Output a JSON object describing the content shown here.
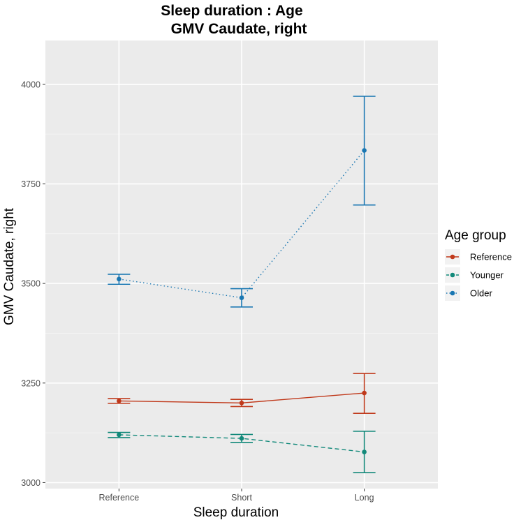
{
  "chart_data": {
    "type": "line",
    "title": "Sleep duration : Age",
    "subtitle": "GMV Caudate, right",
    "xlabel": "Sleep duration",
    "ylabel": "GMV Caudate, right",
    "categories": [
      "Reference",
      "Short",
      "Long"
    ],
    "ylim": [
      2985,
      4110
    ],
    "yticks": [
      3000,
      3250,
      3500,
      3750,
      4000
    ],
    "grid": true,
    "legend": {
      "title": "Age group",
      "position": "right"
    },
    "series": [
      {
        "name": "Reference",
        "color": "#c0391b",
        "linetype": "solid",
        "values": [
          3205,
          3200,
          3225
        ],
        "lower": [
          3199,
          3191,
          3174
        ],
        "upper": [
          3211,
          3209,
          3274
        ]
      },
      {
        "name": "Younger",
        "color": "#12897a",
        "linetype": "dashed",
        "values": [
          3120,
          3111,
          3077
        ],
        "lower": [
          3113,
          3101,
          3025
        ],
        "upper": [
          3126,
          3121,
          3129
        ]
      },
      {
        "name": "Older",
        "color": "#1a77b2",
        "linetype": "dotted",
        "values": [
          3511,
          3464,
          3834
        ],
        "lower": [
          3498,
          3441,
          3697
        ],
        "upper": [
          3523,
          3487,
          3970
        ]
      }
    ]
  }
}
